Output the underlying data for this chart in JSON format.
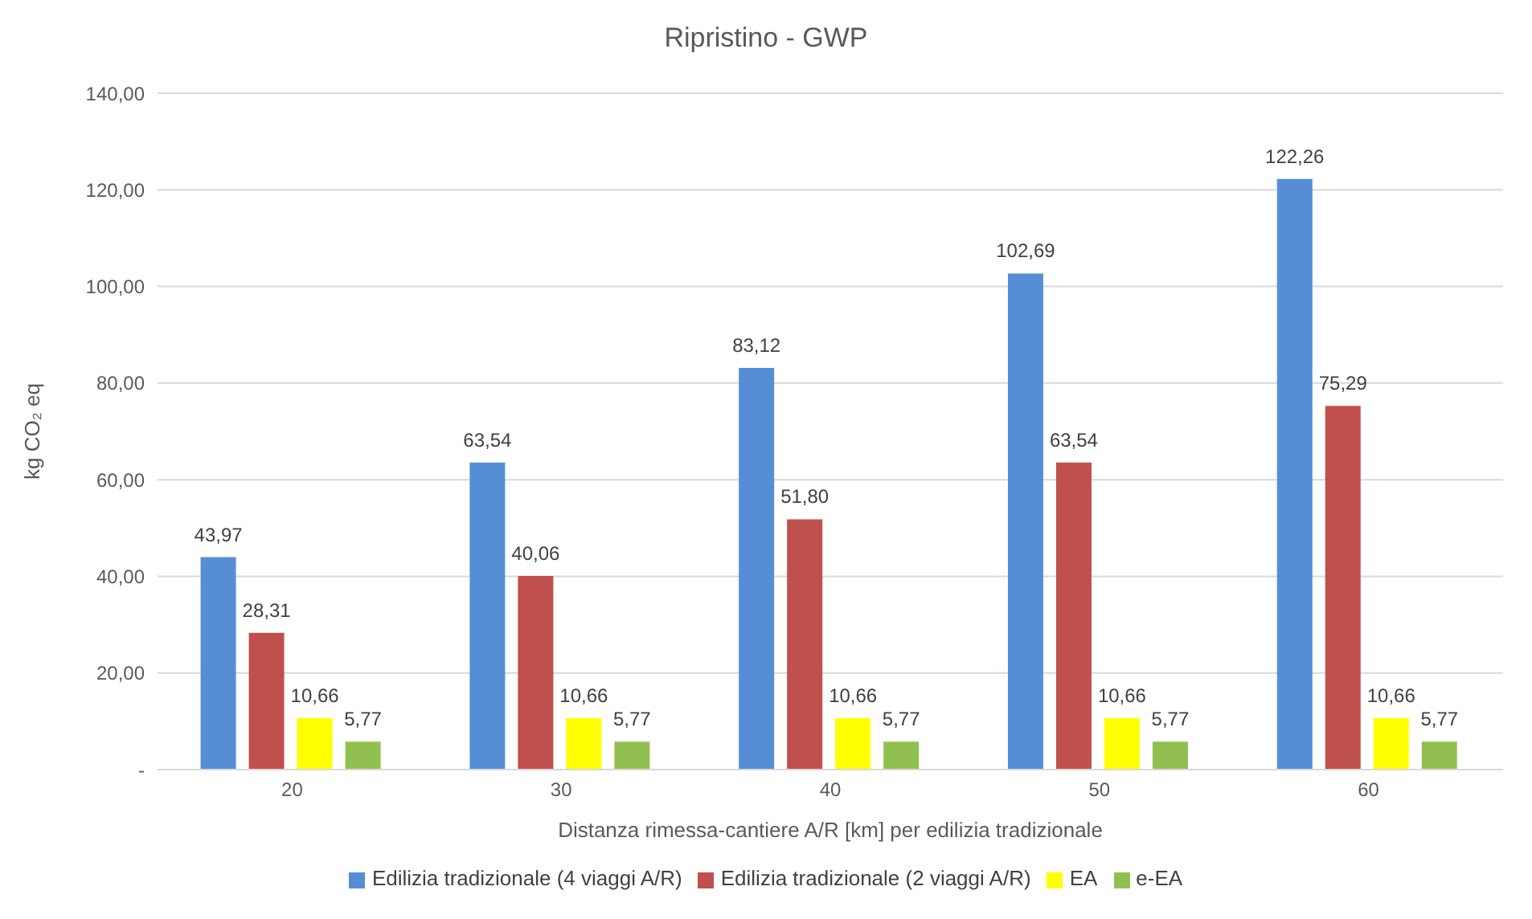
{
  "chart_data": {
    "type": "bar",
    "title": "Ripristino - GWP",
    "xlabel": "Distanza rimessa-cantiere A/R [km] per edilizia tradizionale",
    "ylabel": "kg CO₂ eq",
    "categories": [
      "20",
      "30",
      "40",
      "50",
      "60"
    ],
    "series": [
      {
        "name": "Edilizia tradizionale (4 viaggi A/R)",
        "color": "#558ed5",
        "values": [
          43.97,
          63.54,
          83.12,
          102.69,
          122.26
        ],
        "value_labels": [
          "43,97",
          "63,54",
          "83,12",
          "102,69",
          "122,26"
        ]
      },
      {
        "name": "Edilizia tradizionale (2 viaggi A/R)",
        "color": "#c0504d",
        "values": [
          28.31,
          40.06,
          51.8,
          63.54,
          75.29
        ],
        "value_labels": [
          "28,31",
          "40,06",
          "51,80",
          "63,54",
          "75,29"
        ]
      },
      {
        "name": "EA",
        "color": "#ffff00",
        "values": [
          10.66,
          10.66,
          10.66,
          10.66,
          10.66
        ],
        "value_labels": [
          "10,66",
          "10,66",
          "10,66",
          "10,66",
          "10,66"
        ]
      },
      {
        "name": "e-EA",
        "color": "#92c050",
        "values": [
          5.77,
          5.77,
          5.77,
          5.77,
          5.77
        ],
        "value_labels": [
          "5,77",
          "5,77",
          "5,77",
          "5,77",
          "5,77"
        ]
      }
    ],
    "ylim": [
      0,
      140
    ],
    "yticks": [
      {
        "value": 0,
        "label": "-"
      },
      {
        "value": 20,
        "label": "20,00"
      },
      {
        "value": 40,
        "label": "40,00"
      },
      {
        "value": 60,
        "label": "60,00"
      },
      {
        "value": 80,
        "label": "80,00"
      },
      {
        "value": 100,
        "label": "100,00"
      },
      {
        "value": 120,
        "label": "120,00"
      },
      {
        "value": 140,
        "label": "140,00"
      }
    ],
    "grid": "y",
    "legend": "bottom"
  }
}
